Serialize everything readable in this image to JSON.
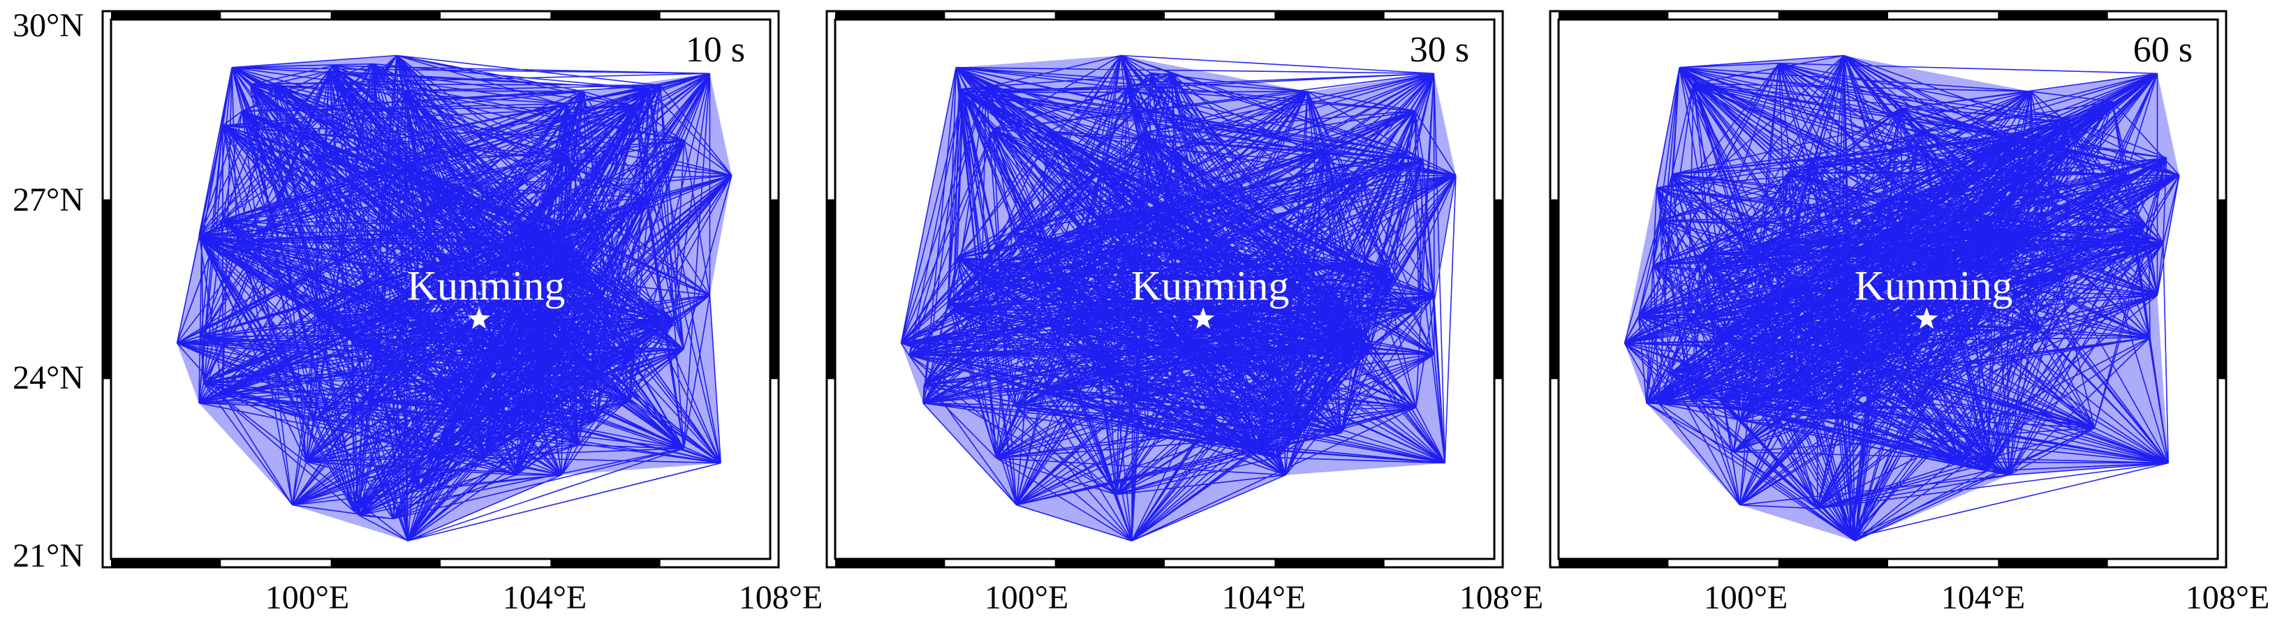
{
  "panels": [
    {
      "period_label": "10 s",
      "city": {
        "name": "Kunming",
        "lon": 102.7,
        "lat": 25.0
      }
    },
    {
      "period_label": "30 s",
      "city": {
        "name": "Kunming",
        "lon": 102.7,
        "lat": 25.0
      }
    },
    {
      "period_label": "60 s",
      "city": {
        "name": "Kunming",
        "lon": 102.7,
        "lat": 25.0
      }
    }
  ],
  "axes": {
    "lon_range": [
      96,
      108
    ],
    "lat_range": [
      21,
      30
    ],
    "y_ticks": [
      {
        "value": 30,
        "label": "30°N"
      },
      {
        "value": 27,
        "label": "27°N"
      },
      {
        "value": 24,
        "label": "24°N"
      },
      {
        "value": 21,
        "label": "21°N"
      }
    ],
    "x_ticks": [
      {
        "value": 100,
        "label": "100°E"
      },
      {
        "value": 104,
        "label": "104°E"
      },
      {
        "value": 108,
        "label": "108°E"
      }
    ]
  },
  "region_outline": [
    [
      97.2,
      24.6
    ],
    [
      98.2,
      29.2
    ],
    [
      101.2,
      29.4
    ],
    [
      104.6,
      28.8
    ],
    [
      106.9,
      29.1
    ],
    [
      107.3,
      27.4
    ],
    [
      106.9,
      25.4
    ],
    [
      107.1,
      22.6
    ],
    [
      104.2,
      22.4
    ],
    [
      101.4,
      21.3
    ],
    [
      99.3,
      21.9
    ],
    [
      97.6,
      23.6
    ]
  ],
  "colors": {
    "paths": "#1010f0",
    "frame": "#000000",
    "city": "#ffffff"
  }
}
